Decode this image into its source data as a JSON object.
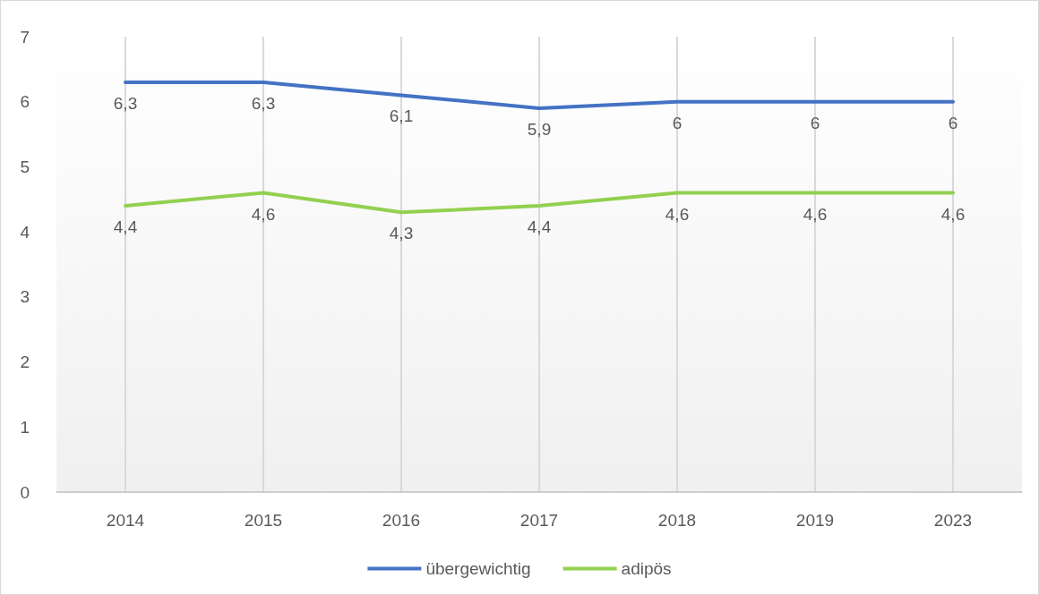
{
  "chart_data": {
    "type": "line",
    "categories": [
      "2014",
      "2015",
      "2016",
      "2017",
      "2018",
      "2019",
      "2023"
    ],
    "series": [
      {
        "name": "übergewichtig",
        "color": "#4472c4",
        "values": [
          6.3,
          6.3,
          6.1,
          5.9,
          6,
          6,
          6
        ],
        "value_labels": [
          "6,3",
          "6,3",
          "6,1",
          "5,9",
          "6",
          "6",
          "6"
        ]
      },
      {
        "name": "adipös",
        "color": "#92d050",
        "values": [
          4.4,
          4.6,
          4.3,
          4.4,
          4.6,
          4.6,
          4.6
        ],
        "value_labels": [
          "4,4",
          "4,6",
          "4,3",
          "4,4",
          "4,6",
          "4,6",
          "4,6"
        ]
      }
    ],
    "ylim": [
      0,
      7
    ],
    "yticks": [
      0,
      1,
      2,
      3,
      4,
      5,
      6,
      7
    ],
    "grid": "x",
    "legend": "bottom",
    "marker": "none",
    "line_style": "solid"
  }
}
